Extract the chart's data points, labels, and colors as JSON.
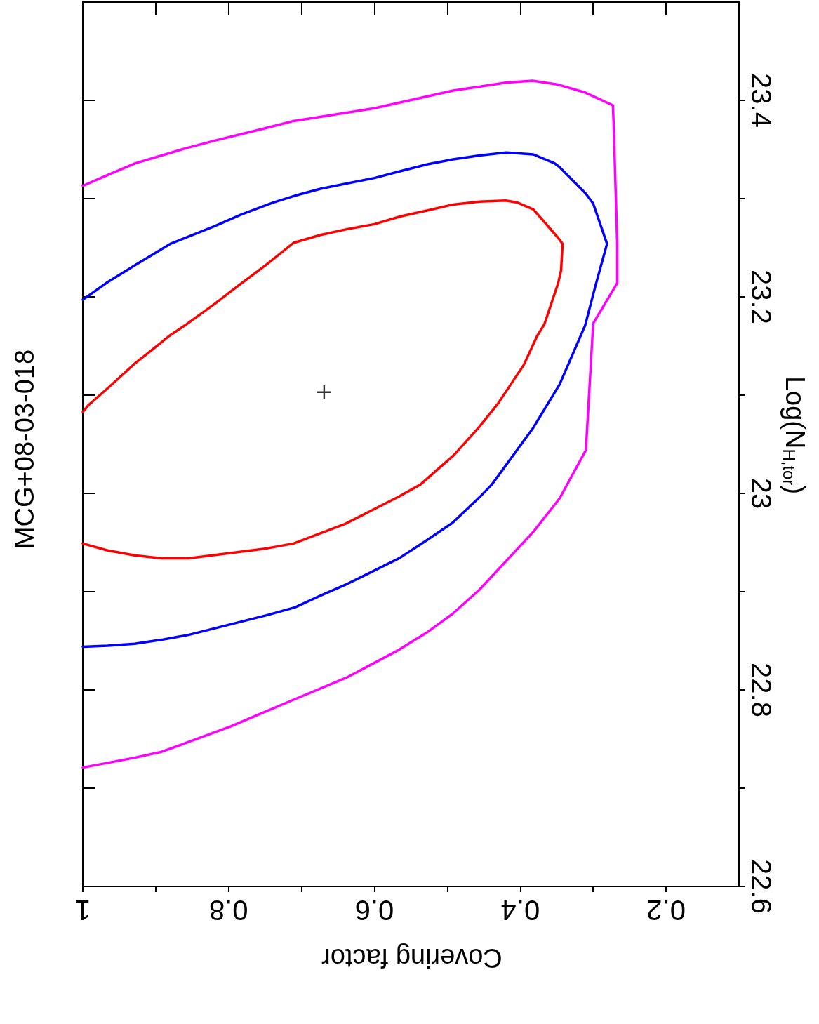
{
  "chart_data": {
    "type": "line",
    "title": "MCG+08-03-018",
    "xlabel": "Covering factor",
    "ylabel": "Log(N$_{H,tor}$)",
    "xlim": [
      1,
      0.1
    ],
    "xticks": [
      1,
      {
        "value": 0.9,
        "label": null
      },
      0.8,
      {
        "value": 0.7,
        "label": null
      },
      0.6,
      {
        "value": 0.5,
        "label": null
      },
      0.4,
      {
        "value": 0.3,
        "label": null
      },
      0.2
    ],
    "ylim": [
      22.6,
      23.5
    ],
    "yticks": [
      22.6,
      {
        "value": 22.7,
        "label": null
      },
      22.8,
      {
        "value": 22.9,
        "label": null
      },
      23,
      {
        "value": 23.1,
        "label": null
      },
      23.2,
      {
        "value": 23.3,
        "label": null
      },
      23.4
    ],
    "grid": false,
    "line_style": "solid",
    "series": [
      {
        "type": "line",
        "color": "#ff0000",
        "x": [
          1.0,
          0.992,
          0.966,
          0.929,
          0.895,
          0.882,
          0.858,
          0.819,
          0.784,
          0.748,
          0.711,
          0.674,
          0.637,
          0.6,
          0.564,
          0.527,
          0.492,
          0.456,
          0.42,
          0.404,
          0.382,
          0.348,
          0.342,
          0.344,
          0.348,
          0.367,
          0.377,
          0.395,
          0.431,
          0.456,
          0.491,
          0.537,
          0.566,
          0.603,
          0.64,
          0.711,
          0.748,
          0.855,
          0.892,
          0.929,
          0.966,
          1.0
        ],
        "values": [
          23.083,
          23.09,
          23.107,
          23.132,
          23.152,
          23.16,
          23.172,
          23.193,
          23.213,
          23.233,
          23.255,
          23.263,
          23.269,
          23.274,
          23.282,
          23.288,
          23.294,
          23.297,
          23.298,
          23.296,
          23.289,
          23.26,
          23.254,
          23.227,
          23.214,
          23.172,
          23.16,
          23.131,
          23.091,
          23.068,
          23.039,
          23.009,
          22.997,
          22.983,
          22.969,
          22.949,
          22.944,
          22.934,
          22.934,
          22.937,
          22.942,
          22.949
        ]
      },
      {
        "type": "line",
        "color": "#0000ff",
        "x": [
          1.0,
          0.966,
          0.929,
          0.88,
          0.819,
          0.782,
          0.739,
          0.709,
          0.674,
          0.6,
          0.564,
          0.527,
          0.492,
          0.456,
          0.419,
          0.382,
          0.353,
          0.346,
          0.31,
          0.3,
          0.281,
          0.297,
          0.311,
          0.346,
          0.382,
          0.439,
          0.456,
          0.493,
          0.529,
          0.566,
          0.637,
          0.674,
          0.709,
          0.748,
          0.855,
          0.892,
          0.929,
          0.966,
          1.0
        ],
        "values": [
          23.197,
          23.215,
          23.232,
          23.254,
          23.272,
          23.284,
          23.296,
          23.303,
          23.31,
          23.321,
          23.328,
          23.335,
          23.34,
          23.344,
          23.347,
          23.345,
          23.336,
          23.332,
          23.305,
          23.295,
          23.254,
          23.211,
          23.171,
          23.111,
          23.067,
          23.009,
          22.996,
          22.97,
          22.952,
          22.934,
          22.908,
          22.896,
          22.884,
          22.876,
          22.856,
          22.851,
          22.847,
          22.845,
          22.844
        ]
      },
      {
        "type": "line",
        "color": "#ff00ff",
        "x": [
          1.0,
          0.966,
          0.928,
          0.86,
          0.819,
          0.748,
          0.711,
          0.6,
          0.492,
          0.456,
          0.42,
          0.383,
          0.348,
          0.311,
          0.273,
          0.272,
          0.267,
          0.267,
          0.3,
          0.31,
          0.346,
          0.382,
          0.456,
          0.492,
          0.529,
          0.566,
          0.637,
          0.711,
          0.797,
          0.855,
          0.892,
          0.929,
          1.0
        ],
        "values": [
          23.313,
          23.324,
          23.336,
          23.351,
          23.359,
          23.372,
          23.379,
          23.392,
          23.41,
          23.414,
          23.418,
          23.42,
          23.416,
          23.408,
          23.395,
          23.378,
          23.254,
          23.214,
          23.173,
          23.044,
          22.995,
          22.961,
          22.902,
          22.878,
          22.858,
          22.841,
          22.813,
          22.79,
          22.763,
          22.747,
          22.737,
          22.731,
          22.721
        ]
      },
      {
        "type": "scatter",
        "marker": "cross",
        "color": "#000000",
        "x": [
          0.669
        ],
        "values": [
          23.103
        ]
      }
    ]
  }
}
